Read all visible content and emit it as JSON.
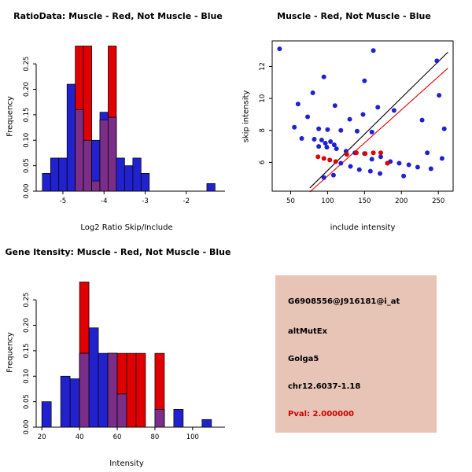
{
  "colors": {
    "muscle_red": "#E00000",
    "not_muscle_blue": "#2121CE",
    "overlap_purple": "#7B2E87",
    "axis": "#000000",
    "info_bg": "#E8C4B7",
    "pval_red": "#CC0000",
    "background": "#FFFFFF"
  },
  "chart_data": [
    {
      "type": "bar",
      "subtype": "overlaid-histogram",
      "title": "RatioData: Muscle - Red, Not Muscle - Blue",
      "xlabel": "Log2 Ratio Skip/Include",
      "ylabel": "Frequency",
      "xlim": [
        -5.65,
        -1.25
      ],
      "ylim": [
        0,
        0.295
      ],
      "xticks": [
        -5,
        -4,
        -3,
        -2
      ],
      "xtick_labels": [
        "-5",
        "-4",
        "-3",
        "-2"
      ],
      "yticks": [
        0,
        0.05,
        0.1,
        0.15,
        0.2,
        0.25
      ],
      "ytick_labels": [
        "0.00",
        "0.05",
        "0.10",
        "0.15",
        "0.20",
        "0.25"
      ],
      "bin_start": -5.5,
      "bin_width": 0.2,
      "overlap_color": "#7B2E87",
      "grid": false,
      "series": [
        {
          "name": "Not Muscle",
          "color": "#2121CE",
          "values": [
            0.035,
            0.065,
            0.065,
            0.21,
            0.16,
            0.1,
            0.1,
            0.155,
            0.145,
            0.065,
            0.05,
            0.065,
            0.035,
            0,
            0,
            0,
            0,
            0,
            0,
            0,
            0.015
          ]
        },
        {
          "name": "Muscle",
          "color": "#E00000",
          "values": [
            0,
            0,
            0,
            0,
            0.285,
            0.285,
            0.02,
            0.14,
            0.285,
            0,
            0,
            0,
            0,
            0,
            0,
            0,
            0,
            0,
            0,
            0,
            0
          ]
        }
      ]
    },
    {
      "type": "scatter",
      "title": "Muscle - Red, Not Muscle - Blue",
      "xlabel": "include intensity",
      "ylabel": "skip intensity",
      "xlim": [
        25,
        270
      ],
      "ylim": [
        4.2,
        13.6
      ],
      "xticks": [
        50,
        100,
        150,
        200,
        250
      ],
      "xtick_labels": [
        "50",
        "100",
        "150",
        "200",
        "250"
      ],
      "yticks": [
        6,
        8,
        10,
        12
      ],
      "ytick_labels": [
        "6",
        "8",
        "10",
        "12"
      ],
      "frame": true,
      "grid": false,
      "series": [
        {
          "name": "Not Muscle",
          "color": "#2121CE",
          "points": [
            [
              35,
              13.1
            ],
            [
              162,
              13.0
            ],
            [
              248,
              12.35
            ],
            [
              95,
              11.35
            ],
            [
              150,
              11.1
            ],
            [
              80,
              10.35
            ],
            [
              251,
              10.2
            ],
            [
              60,
              9.65
            ],
            [
              110,
              9.55
            ],
            [
              168,
              9.45
            ],
            [
              190,
              9.25
            ],
            [
              148,
              9.0
            ],
            [
              73,
              8.85
            ],
            [
              130,
              8.7
            ],
            [
              228,
              8.65
            ],
            [
              55,
              8.2
            ],
            [
              88,
              8.1
            ],
            [
              100,
              8.05
            ],
            [
              118,
              8.0
            ],
            [
              140,
              7.95
            ],
            [
              160,
              7.9
            ],
            [
              258,
              8.1
            ],
            [
              65,
              7.5
            ],
            [
              82,
              7.45
            ],
            [
              92,
              7.4
            ],
            [
              104,
              7.3
            ],
            [
              97,
              7.2
            ],
            [
              109,
              7.1
            ],
            [
              88,
              7.0
            ],
            [
              99,
              6.95
            ],
            [
              112,
              6.85
            ],
            [
              125,
              6.7
            ],
            [
              137,
              6.6
            ],
            [
              150,
              6.55
            ],
            [
              235,
              6.6
            ],
            [
              255,
              6.25
            ],
            [
              160,
              6.2
            ],
            [
              172,
              6.35
            ],
            [
              185,
              6.05
            ],
            [
              197,
              5.95
            ],
            [
              210,
              5.85
            ],
            [
              222,
              5.7
            ],
            [
              240,
              5.6
            ],
            [
              118,
              5.95
            ],
            [
              131,
              5.75
            ],
            [
              143,
              5.55
            ],
            [
              158,
              5.45
            ],
            [
              171,
              5.3
            ],
            [
              108,
              5.2
            ],
            [
              95,
              5.05
            ],
            [
              203,
              5.15
            ]
          ]
        },
        {
          "name": "Muscle",
          "color": "#E00000",
          "points": [
            [
              87,
              6.35
            ],
            [
              95,
              6.25
            ],
            [
              103,
              6.15
            ],
            [
              111,
              6.05
            ],
            [
              126,
              6.5
            ],
            [
              139,
              6.6
            ],
            [
              151,
              6.55
            ],
            [
              162,
              6.6
            ],
            [
              172,
              6.6
            ],
            [
              181,
              5.95
            ]
          ]
        }
      ],
      "lines": [
        {
          "name": "identity-line",
          "color": "#000000",
          "points": [
            [
              76,
              4.4
            ],
            [
              263,
              12.9
            ]
          ]
        },
        {
          "name": "fit-line",
          "color": "#E00000",
          "points": [
            [
              76,
              4.15
            ],
            [
              263,
              11.9
            ]
          ]
        }
      ]
    },
    {
      "type": "bar",
      "subtype": "overlaid-histogram",
      "title": "Gene Itensity: Muscle - Red, Not Muscle - Blue",
      "xlabel": "Intensity",
      "ylabel": "Frequency",
      "xlim": [
        17,
        113
      ],
      "ylim": [
        0,
        0.295
      ],
      "xticks": [
        20,
        40,
        60,
        80,
        100
      ],
      "xtick_labels": [
        "20",
        "40",
        "60",
        "80",
        "100"
      ],
      "yticks": [
        0,
        0.05,
        0.1,
        0.15,
        0.2,
        0.25
      ],
      "ytick_labels": [
        "0.00",
        "0.05",
        "0.10",
        "0.15",
        "0.20",
        "0.25"
      ],
      "bin_start": 20,
      "bin_width": 5,
      "overlap_color": "#7B2E87",
      "grid": false,
      "series": [
        {
          "name": "Not Muscle",
          "color": "#2121CE",
          "values": [
            0.05,
            0,
            0.1,
            0.095,
            0.145,
            0.195,
            0.145,
            0.145,
            0.065,
            0,
            0,
            0,
            0.035,
            0,
            0.035,
            0,
            0,
            0.015
          ]
        },
        {
          "name": "Muscle",
          "color": "#E00000",
          "values": [
            0,
            0,
            0,
            0,
            0.285,
            0,
            0,
            0.145,
            0.145,
            0.145,
            0.145,
            0,
            0.145,
            0,
            0,
            0,
            0,
            0
          ]
        }
      ]
    }
  ],
  "info_panel": {
    "bg": "#E8C4B7",
    "lines": [
      {
        "text": "G6908556@J916181@i_at"
      },
      {
        "text": "altMutEx"
      },
      {
        "text": "Golga5"
      },
      {
        "text": "chr12.6037-1.18"
      },
      {
        "text": "Pval: 2.000000"
      }
    ]
  }
}
